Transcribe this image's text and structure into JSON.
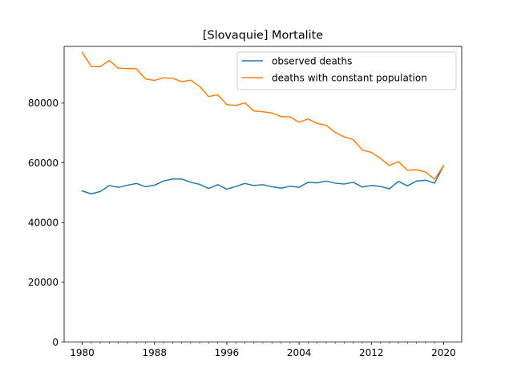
{
  "chart_data": {
    "type": "line",
    "title": "[Slovaquie] Mortalite",
    "xlabel": "",
    "ylabel": "",
    "xlim": [
      1978,
      2022
    ],
    "ylim": [
      0,
      99000
    ],
    "x_ticks": [
      1980,
      1988,
      1996,
      2004,
      2012,
      2020
    ],
    "x_minor_step": 1,
    "y_ticks": [
      0,
      20000,
      40000,
      60000,
      80000
    ],
    "grid": false,
    "legend_position": "upper-right",
    "x": [
      1980,
      1981,
      1982,
      1983,
      1984,
      1985,
      1986,
      1987,
      1988,
      1989,
      1990,
      1991,
      1992,
      1993,
      1994,
      1995,
      1996,
      1997,
      1998,
      1999,
      2000,
      2001,
      2002,
      2003,
      2004,
      2005,
      2006,
      2007,
      2008,
      2009,
      2010,
      2011,
      2012,
      2013,
      2014,
      2015,
      2016,
      2017,
      2018,
      2019,
      2020
    ],
    "series": [
      {
        "name": "observed deaths",
        "color": "#1f77b4",
        "values": [
          50600,
          49600,
          50400,
          52400,
          51800,
          52500,
          53100,
          52000,
          52500,
          53900,
          54600,
          54600,
          53500,
          52800,
          51400,
          52700,
          51200,
          52100,
          53100,
          52400,
          52700,
          52000,
          51500,
          52200,
          51800,
          53500,
          53300,
          53900,
          53200,
          52900,
          53500,
          51900,
          52400,
          52100,
          51300,
          53800,
          52300,
          53900,
          54200,
          53200,
          59100
        ]
      },
      {
        "name": "deaths with constant population",
        "color": "#ff7f0e",
        "values": [
          97000,
          92300,
          92200,
          94300,
          91700,
          91600,
          91500,
          88100,
          87600,
          88500,
          88300,
          87200,
          87700,
          85600,
          82200,
          82800,
          79500,
          79200,
          80100,
          77400,
          77100,
          76700,
          75500,
          75400,
          73600,
          74700,
          73200,
          72600,
          70200,
          68700,
          67800,
          64300,
          63500,
          61500,
          59100,
          60400,
          57500,
          57700,
          56900,
          54500,
          59100
        ]
      }
    ]
  }
}
